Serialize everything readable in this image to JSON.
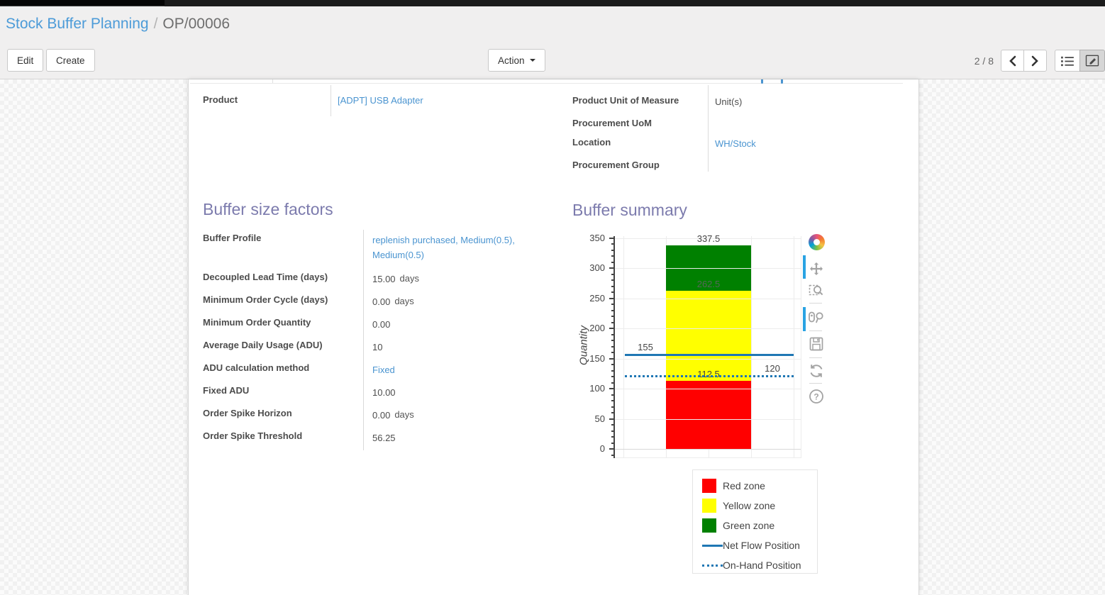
{
  "breadcrumb": {
    "section": "Stock Buffer Planning",
    "separator": "/",
    "record": "OP/00006"
  },
  "control_panel": {
    "edit_label": "Edit",
    "create_label": "Create",
    "action_label": "Action",
    "pager": "2 / 8",
    "view_switcher": [
      "list",
      "form"
    ],
    "active_view": "form"
  },
  "form": {
    "product": {
      "label": "Product",
      "value": "[ADPT] USB Adapter"
    },
    "right_rows": [
      {
        "label": "Product Unit of Measure",
        "value": "Unit(s)"
      },
      {
        "label": "Procurement UoM",
        "value": ""
      },
      {
        "label": "Location",
        "value": "WH/Stock"
      },
      {
        "label": "Procurement Group",
        "value": ""
      }
    ],
    "buffer_factors": {
      "title": "Buffer size factors",
      "rows": [
        {
          "label": "Buffer Profile",
          "value": "replenish purchased, Medium(0.5), Medium(0.5)",
          "link": true
        },
        {
          "label": "Decoupled Lead Time (days)",
          "value": "15.00",
          "unit": "days"
        },
        {
          "label": "Minimum Order Cycle (days)",
          "value": "0.00",
          "unit": "days"
        },
        {
          "label": "Minimum Order Quantity",
          "value": "0.00"
        },
        {
          "label": "Average Daily Usage (ADU)",
          "value": "10"
        },
        {
          "label": "ADU calculation method",
          "value": "Fixed",
          "link": true
        },
        {
          "label": "Fixed ADU",
          "value": "10.00"
        },
        {
          "label": "Order Spike Horizon",
          "value": "0.00",
          "unit": "days"
        },
        {
          "label": "Order Spike Threshold",
          "value": "56.25"
        }
      ]
    },
    "buffer_summary_title": "Buffer summary"
  },
  "modebar_tools": [
    "plotly-logo",
    "pan",
    "box-zoom",
    "hover-compare",
    "save",
    "reset-axes",
    "help"
  ],
  "colors": {
    "link_blue": "#4a94d0",
    "heading_purple": "#7c7bad",
    "modebar_active": "#29a3e3"
  },
  "chart_data": {
    "type": "bar",
    "title": "Buffer summary",
    "ylabel": "Quantity",
    "ylim": [
      0,
      350
    ],
    "ytick_step": 50,
    "yminor_step": 10,
    "grid": true,
    "legend_position": "below-right",
    "zones": [
      {
        "name": "Red zone",
        "from": 0,
        "to": 112.5,
        "color": "#ff0000",
        "label": "112.5"
      },
      {
        "name": "Yellow zone",
        "from": 112.5,
        "to": 262.5,
        "color": "#ffff00",
        "label": "262.5",
        "label_color": "#56665a"
      },
      {
        "name": "Green zone",
        "from": 262.5,
        "to": 337.5,
        "color": "#008000",
        "label": "337.5"
      }
    ],
    "lines": [
      {
        "name": "Net Flow Position",
        "value": 155,
        "dash": "solid",
        "color": "#1f77b4",
        "label": "155",
        "label_pos": "left"
      },
      {
        "name": "On-Hand Position",
        "value": 120,
        "dash": "dot",
        "color": "#1f77b4",
        "label": "120",
        "label_pos": "right"
      }
    ],
    "legend": [
      {
        "label": "Red zone",
        "swatch": "square",
        "color": "#ff0000"
      },
      {
        "label": "Yellow zone",
        "swatch": "square",
        "color": "#ffff00"
      },
      {
        "label": "Green zone",
        "swatch": "square",
        "color": "#008000"
      },
      {
        "label": "Net Flow Position",
        "swatch": "line",
        "color": "#1f77b4"
      },
      {
        "label": "On-Hand Position",
        "swatch": "dots",
        "color": "#1f77b4"
      }
    ]
  }
}
